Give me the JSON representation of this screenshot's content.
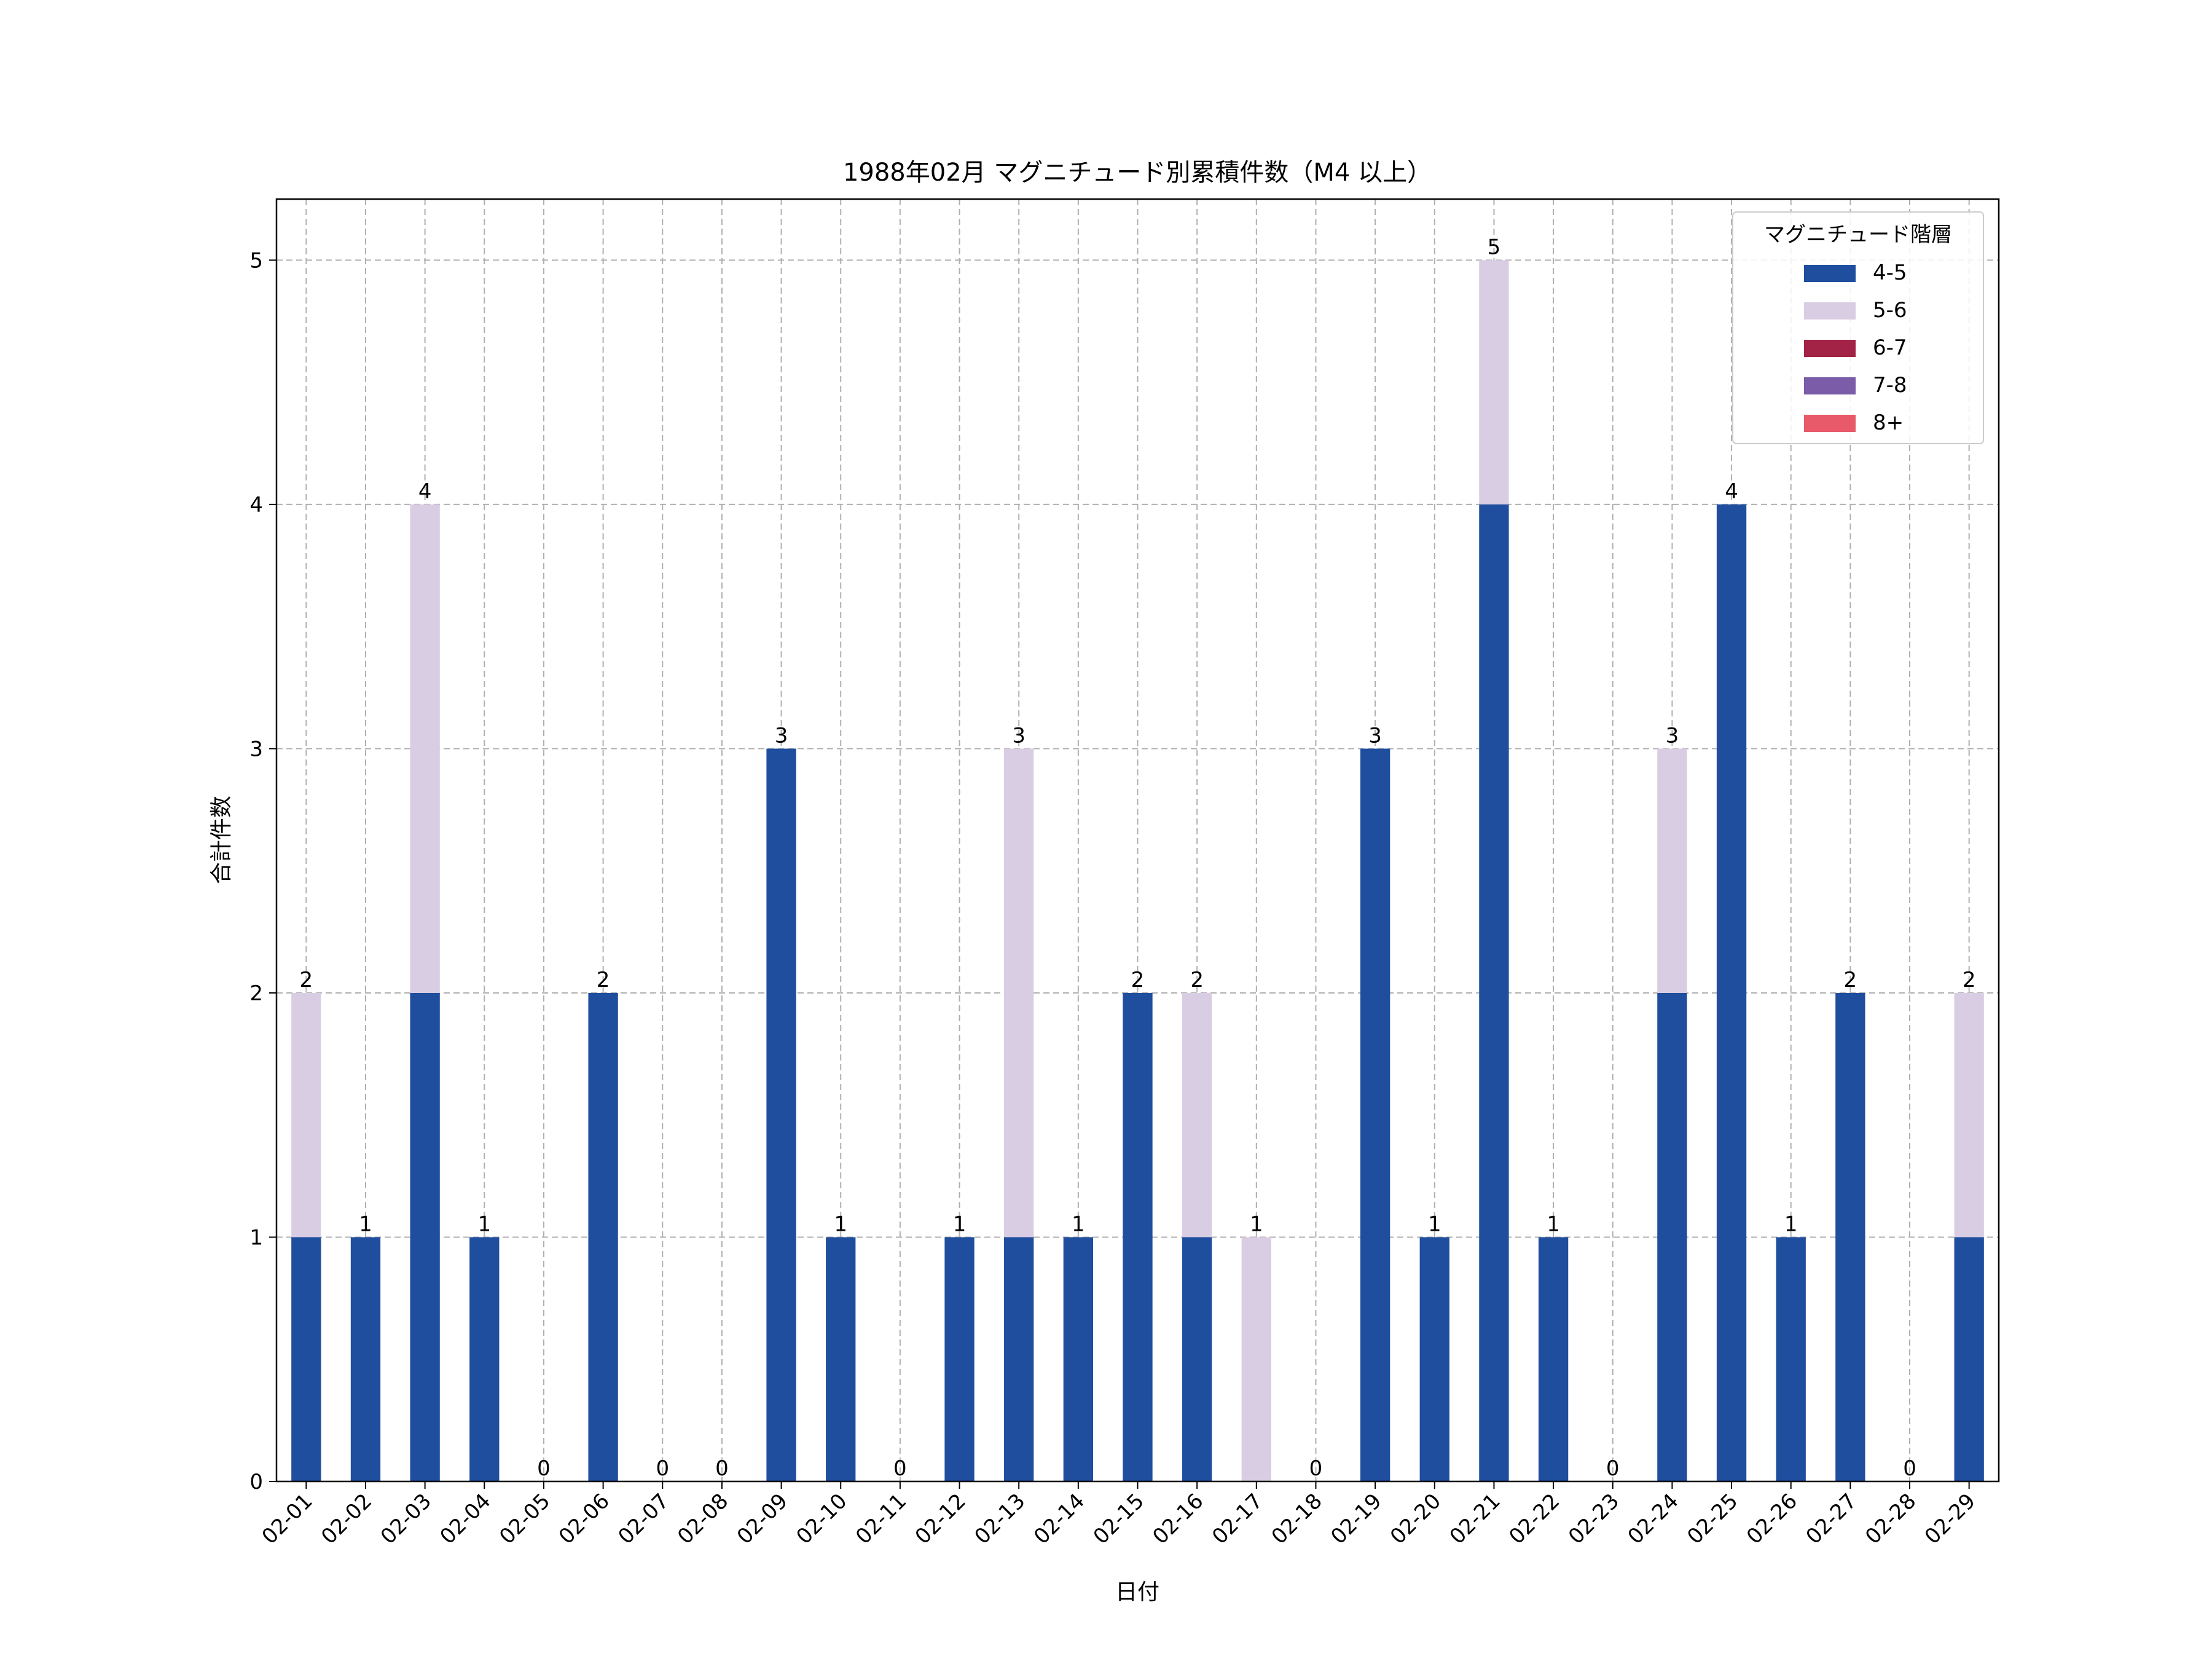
{
  "chart_data": {
    "type": "bar",
    "stacked": true,
    "title": "1988年02月 マグニチュード別累積件数（M4 以上）",
    "xlabel": "日付",
    "ylabel": "合計件数",
    "ylim": [
      0,
      5.25
    ],
    "yticks": [
      0,
      1,
      2,
      3,
      4,
      5
    ],
    "grid": true,
    "legend": {
      "title": "マグニチュード階層",
      "placement": "top-right"
    },
    "categories": [
      "02-01",
      "02-02",
      "02-03",
      "02-04",
      "02-05",
      "02-06",
      "02-07",
      "02-08",
      "02-09",
      "02-10",
      "02-11",
      "02-12",
      "02-13",
      "02-14",
      "02-15",
      "02-16",
      "02-17",
      "02-18",
      "02-19",
      "02-20",
      "02-21",
      "02-22",
      "02-23",
      "02-24",
      "02-25",
      "02-26",
      "02-27",
      "02-28",
      "02-29"
    ],
    "series": [
      {
        "name": "4-5",
        "color": "#1f4e9e",
        "values": [
          1,
          1,
          2,
          1,
          0,
          2,
          0,
          0,
          3,
          1,
          0,
          1,
          1,
          1,
          2,
          1,
          0,
          0,
          3,
          1,
          4,
          1,
          0,
          2,
          4,
          1,
          2,
          0,
          1
        ]
      },
      {
        "name": "5-6",
        "color": "#d9cde3",
        "values": [
          1,
          0,
          2,
          0,
          0,
          0,
          0,
          0,
          0,
          0,
          0,
          0,
          2,
          0,
          0,
          1,
          1,
          0,
          0,
          0,
          1,
          0,
          0,
          1,
          0,
          0,
          0,
          0,
          1
        ]
      },
      {
        "name": "6-7",
        "color": "#a32346",
        "values": [
          0,
          0,
          0,
          0,
          0,
          0,
          0,
          0,
          0,
          0,
          0,
          0,
          0,
          0,
          0,
          0,
          0,
          0,
          0,
          0,
          0,
          0,
          0,
          0,
          0,
          0,
          0,
          0,
          0
        ]
      },
      {
        "name": "7-8",
        "color": "#7a5ca8",
        "values": [
          0,
          0,
          0,
          0,
          0,
          0,
          0,
          0,
          0,
          0,
          0,
          0,
          0,
          0,
          0,
          0,
          0,
          0,
          0,
          0,
          0,
          0,
          0,
          0,
          0,
          0,
          0,
          0,
          0
        ]
      },
      {
        "name": "8+",
        "color": "#e85a6a",
        "values": [
          0,
          0,
          0,
          0,
          0,
          0,
          0,
          0,
          0,
          0,
          0,
          0,
          0,
          0,
          0,
          0,
          0,
          0,
          0,
          0,
          0,
          0,
          0,
          0,
          0,
          0,
          0,
          0,
          0
        ]
      }
    ],
    "totals": [
      2,
      1,
      4,
      1,
      0,
      2,
      0,
      0,
      3,
      1,
      0,
      1,
      3,
      1,
      2,
      2,
      1,
      0,
      3,
      1,
      5,
      1,
      0,
      3,
      4,
      1,
      2,
      0,
      2
    ]
  }
}
